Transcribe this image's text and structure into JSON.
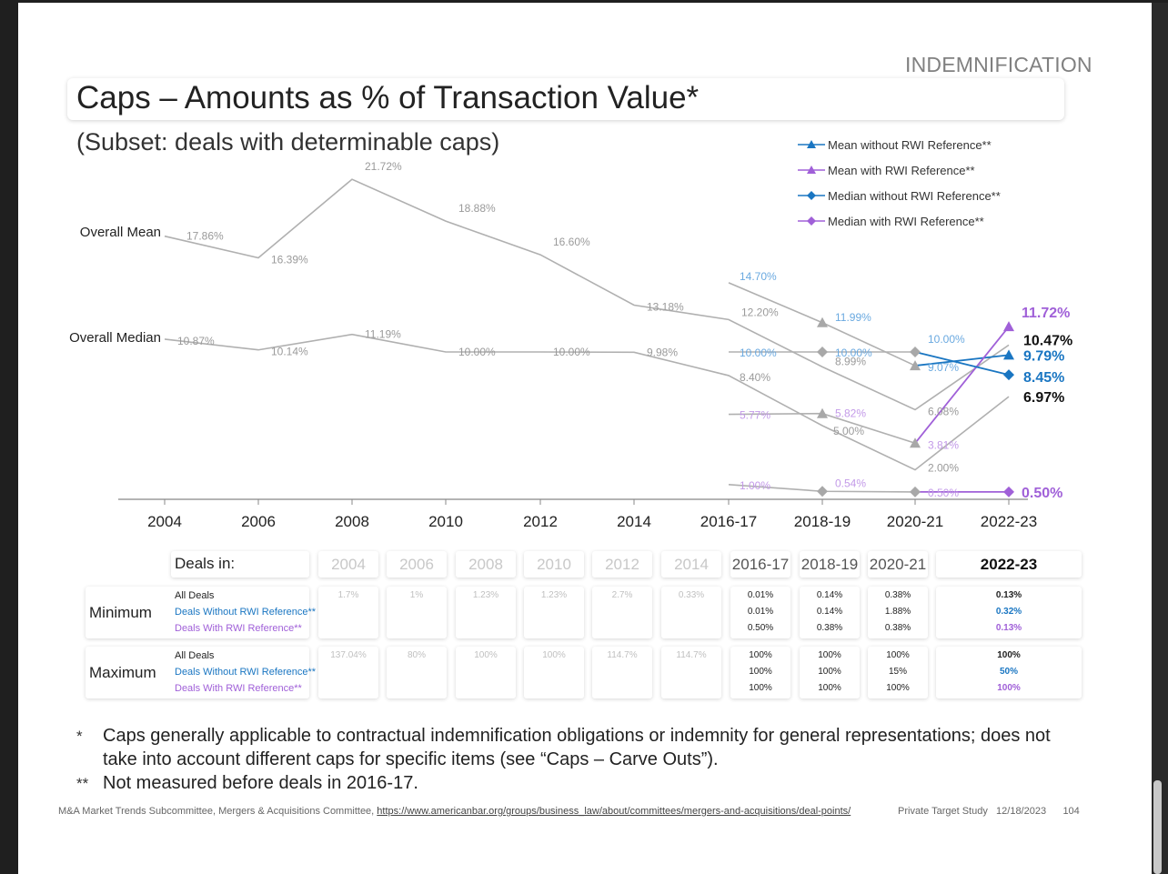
{
  "header": {
    "section": "INDEMNIFICATION",
    "title": "Caps – Amounts as % of Transaction Value*",
    "subtitle": "(Subset: deals with determinable caps)"
  },
  "chart_data": {
    "type": "line",
    "categories": [
      "2004",
      "2006",
      "2008",
      "2010",
      "2012",
      "2014",
      "2016-17",
      "2018-19",
      "2020-21",
      "2022-23"
    ],
    "row_labels": [
      "Overall Mean",
      "Overall Median"
    ],
    "series": [
      {
        "name": "Overall Mean",
        "color": "#b0b0b0",
        "values": [
          17.86,
          16.39,
          21.72,
          18.88,
          16.6,
          13.18,
          12.2,
          8.99,
          6.08,
          10.47
        ],
        "labels": [
          "17.86%",
          "16.39%",
          "21.72%",
          "18.88%",
          "16.60%",
          "13.18%",
          "12.20%",
          "8.99%",
          "6.08%",
          "10.47%"
        ]
      },
      {
        "name": "Overall Median",
        "color": "#b0b0b0",
        "values": [
          10.87,
          10.14,
          11.19,
          10.0,
          10.0,
          9.98,
          8.4,
          5.0,
          2.0,
          6.97
        ],
        "labels": [
          "10.87%",
          "10.14%",
          "11.19%",
          "10.00%",
          "10.00%",
          "9.98%",
          "8.40%",
          "5.00%",
          "2.00%",
          "6.97%"
        ]
      },
      {
        "name": "Mean without RWI Reference**",
        "color": "#1a76c2",
        "marker": "triangle",
        "values": [
          null,
          null,
          null,
          null,
          null,
          null,
          14.7,
          11.99,
          9.07,
          9.79
        ],
        "labels": [
          "",
          "",
          "",
          "",
          "",
          "",
          "14.70%",
          "11.99%",
          "9.07%",
          "9.79%"
        ]
      },
      {
        "name": "Mean with RWI Reference**",
        "color": "#a060d8",
        "marker": "triangle",
        "values": [
          null,
          null,
          null,
          null,
          null,
          null,
          5.77,
          5.82,
          3.81,
          11.72
        ],
        "labels": [
          "",
          "",
          "",
          "",
          "",
          "",
          "5.77%",
          "5.82%",
          "3.81%",
          "11.72%"
        ]
      },
      {
        "name": "Median without RWI Reference**",
        "color": "#1a76c2",
        "marker": "diamond",
        "values": [
          null,
          null,
          null,
          null,
          null,
          null,
          10.0,
          10.0,
          10.0,
          8.45
        ],
        "labels": [
          "",
          "",
          "",
          "",
          "",
          "",
          "10.00%",
          "10.00%",
          "10.00%",
          "8.45%"
        ]
      },
      {
        "name": "Median with RWI Reference**",
        "color": "#a060d8",
        "marker": "diamond",
        "values": [
          null,
          null,
          null,
          null,
          null,
          null,
          1.0,
          0.54,
          0.5,
          0.5
        ],
        "labels": [
          "",
          "",
          "",
          "",
          "",
          "",
          "1.00%",
          "0.54%",
          "0.50%",
          "0.50%"
        ]
      }
    ],
    "legend_position": "top-right"
  },
  "table": {
    "corner": "Deals in:",
    "columns": [
      "2004",
      "2006",
      "2008",
      "2010",
      "2012",
      "2014",
      "2016-17",
      "2018-19",
      "2020-21",
      "2022-23"
    ],
    "deal_labels": [
      "All Deals",
      "Deals Without RWI Reference**",
      "Deals With RWI Reference**"
    ],
    "rows": [
      {
        "name": "Minimum",
        "cells": [
          [
            "1.7%"
          ],
          [
            "1%"
          ],
          [
            "1.23%"
          ],
          [
            "1.23%"
          ],
          [
            "2.7%"
          ],
          [
            "0.33%"
          ],
          [
            "0.01%",
            "0.01%",
            "0.50%"
          ],
          [
            "0.14%",
            "0.14%",
            "0.38%"
          ],
          [
            "0.38%",
            "1.88%",
            "0.38%"
          ],
          [
            "0.13%",
            "0.32%",
            "0.13%"
          ]
        ]
      },
      {
        "name": "Maximum",
        "cells": [
          [
            "137.04%"
          ],
          [
            "80%"
          ],
          [
            "100%"
          ],
          [
            "100%"
          ],
          [
            "114.7%"
          ],
          [
            "114.7%"
          ],
          [
            "100%",
            "100%",
            "100%"
          ],
          [
            "100%",
            "100%",
            "100%"
          ],
          [
            "100%",
            "15%",
            "100%"
          ],
          [
            "100%",
            "50%",
            "100%"
          ]
        ]
      }
    ]
  },
  "footnotes": {
    "star1": "*",
    "text1": "Caps generally applicable to contractual indemnification obligations or indemnity for general representations; does not take into account different caps for specific items (see “Caps – Carve Outs”).",
    "star2": "**",
    "text2": "Not measured before deals in 2016-17."
  },
  "footer": {
    "source": "M&A Market Trends Subcommittee, Mergers & Acquisitions Committee, ",
    "link": "https://www.americanbar.org/groups/business_law/about/committees/mergers-and-acquisitions/deal-points/",
    "study": "Private Target Study",
    "date": "12/18/2023",
    "page": "104"
  }
}
